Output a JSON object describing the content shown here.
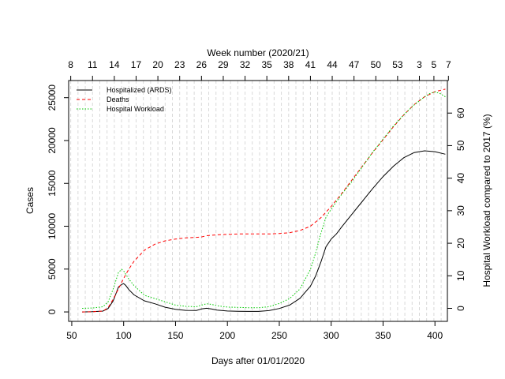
{
  "chart_data": {
    "type": "line",
    "xlabel": "Days after 01/01/2020",
    "ylabel": "Cases",
    "y2label": "Hospital Workload compared to 2017 (%)",
    "top_axis_label": "Week number (2020/21)",
    "xlim": [
      47,
      412
    ],
    "ylim": [
      -1100,
      27000
    ],
    "y2lim": [
      -4,
      70
    ],
    "x_ticks": [
      50,
      100,
      150,
      200,
      250,
      300,
      350,
      400
    ],
    "y_ticks": [
      0,
      5000,
      10000,
      15000,
      20000,
      25000
    ],
    "y2_ticks": [
      0,
      10,
      20,
      30,
      40,
      50,
      60
    ],
    "top_ticks": [
      {
        "day": 49,
        "label": "8"
      },
      {
        "day": 70,
        "label": "11"
      },
      {
        "day": 91,
        "label": "14"
      },
      {
        "day": 112,
        "label": "17"
      },
      {
        "day": 133,
        "label": "20"
      },
      {
        "day": 154,
        "label": "23"
      },
      {
        "day": 175,
        "label": "26"
      },
      {
        "day": 196,
        "label": "29"
      },
      {
        "day": 217,
        "label": "32"
      },
      {
        "day": 238,
        "label": "35"
      },
      {
        "day": 259,
        "label": "38"
      },
      {
        "day": 280,
        "label": "41"
      },
      {
        "day": 301,
        "label": "44"
      },
      {
        "day": 322,
        "label": "47"
      },
      {
        "day": 343,
        "label": "50"
      },
      {
        "day": 364,
        "label": "53"
      },
      {
        "day": 385,
        "label": "3"
      },
      {
        "day": 399,
        "label": "5"
      },
      {
        "day": 413,
        "label": "7"
      }
    ],
    "grid": "dashed vertical gridlines at each week",
    "legend_position": "top-left",
    "series": [
      {
        "name": "Hospitalized (ARDS)",
        "color": "#000000",
        "style": "solid",
        "axis": "left",
        "x": [
          60,
          70,
          80,
          85,
          90,
          95,
          98,
          100,
          102,
          105,
          110,
          120,
          130,
          140,
          150,
          160,
          170,
          175,
          180,
          185,
          190,
          200,
          210,
          220,
          230,
          240,
          250,
          260,
          270,
          280,
          285,
          290,
          295,
          300,
          305,
          310,
          320,
          330,
          340,
          350,
          360,
          370,
          380,
          390,
          400,
          410
        ],
        "y": [
          0,
          20,
          100,
          400,
          1300,
          2900,
          3200,
          3300,
          3100,
          2600,
          2000,
          1300,
          950,
          550,
          300,
          180,
          170,
          350,
          430,
          340,
          210,
          110,
          80,
          60,
          60,
          150,
          400,
          800,
          1600,
          3000,
          4200,
          5800,
          7600,
          8500,
          9100,
          9900,
          11400,
          12900,
          14400,
          15800,
          17000,
          18000,
          18600,
          18800,
          18700,
          18400
        ]
      },
      {
        "name": "Deaths",
        "color": "#ff0000",
        "style": "dashed",
        "axis": "left",
        "x": [
          60,
          70,
          80,
          85,
          90,
          95,
          100,
          105,
          110,
          120,
          130,
          140,
          150,
          160,
          170,
          175,
          180,
          190,
          200,
          210,
          220,
          230,
          240,
          250,
          260,
          270,
          280,
          290,
          300,
          310,
          320,
          330,
          340,
          350,
          360,
          370,
          380,
          390,
          400,
          410
        ],
        "y": [
          0,
          20,
          100,
          500,
          1500,
          2700,
          3900,
          5000,
          5900,
          7200,
          7900,
          8300,
          8500,
          8650,
          8700,
          8750,
          8900,
          9000,
          9050,
          9100,
          9100,
          9100,
          9100,
          9150,
          9250,
          9500,
          10000,
          11000,
          12300,
          13800,
          15400,
          17000,
          18600,
          20100,
          21600,
          23000,
          24200,
          25100,
          25700,
          26000
        ]
      },
      {
        "name": "Hospital Workload",
        "color": "#00cc00",
        "style": "dotted",
        "axis": "right",
        "x": [
          60,
          70,
          80,
          85,
          90,
          95,
          98,
          100,
          102,
          105,
          110,
          120,
          130,
          140,
          150,
          160,
          170,
          175,
          180,
          185,
          190,
          200,
          210,
          220,
          230,
          240,
          250,
          260,
          270,
          280,
          285,
          290,
          295,
          300,
          310,
          320,
          330,
          340,
          350,
          360,
          370,
          380,
          390,
          395,
          400,
          405,
          410
        ],
        "y": [
          0,
          0.1,
          0.5,
          2,
          6,
          11,
          12,
          11.5,
          10.5,
          9,
          7,
          4,
          3,
          2,
          1,
          0.6,
          0.5,
          1,
          1.4,
          1.2,
          0.8,
          0.4,
          0.3,
          0.2,
          0.2,
          0.5,
          1.5,
          3,
          6,
          12,
          17,
          23,
          28,
          30.5,
          35,
          39,
          43.5,
          48,
          52,
          56,
          59.5,
          62.5,
          65,
          66,
          66.5,
          66,
          65
        ]
      }
    ]
  }
}
